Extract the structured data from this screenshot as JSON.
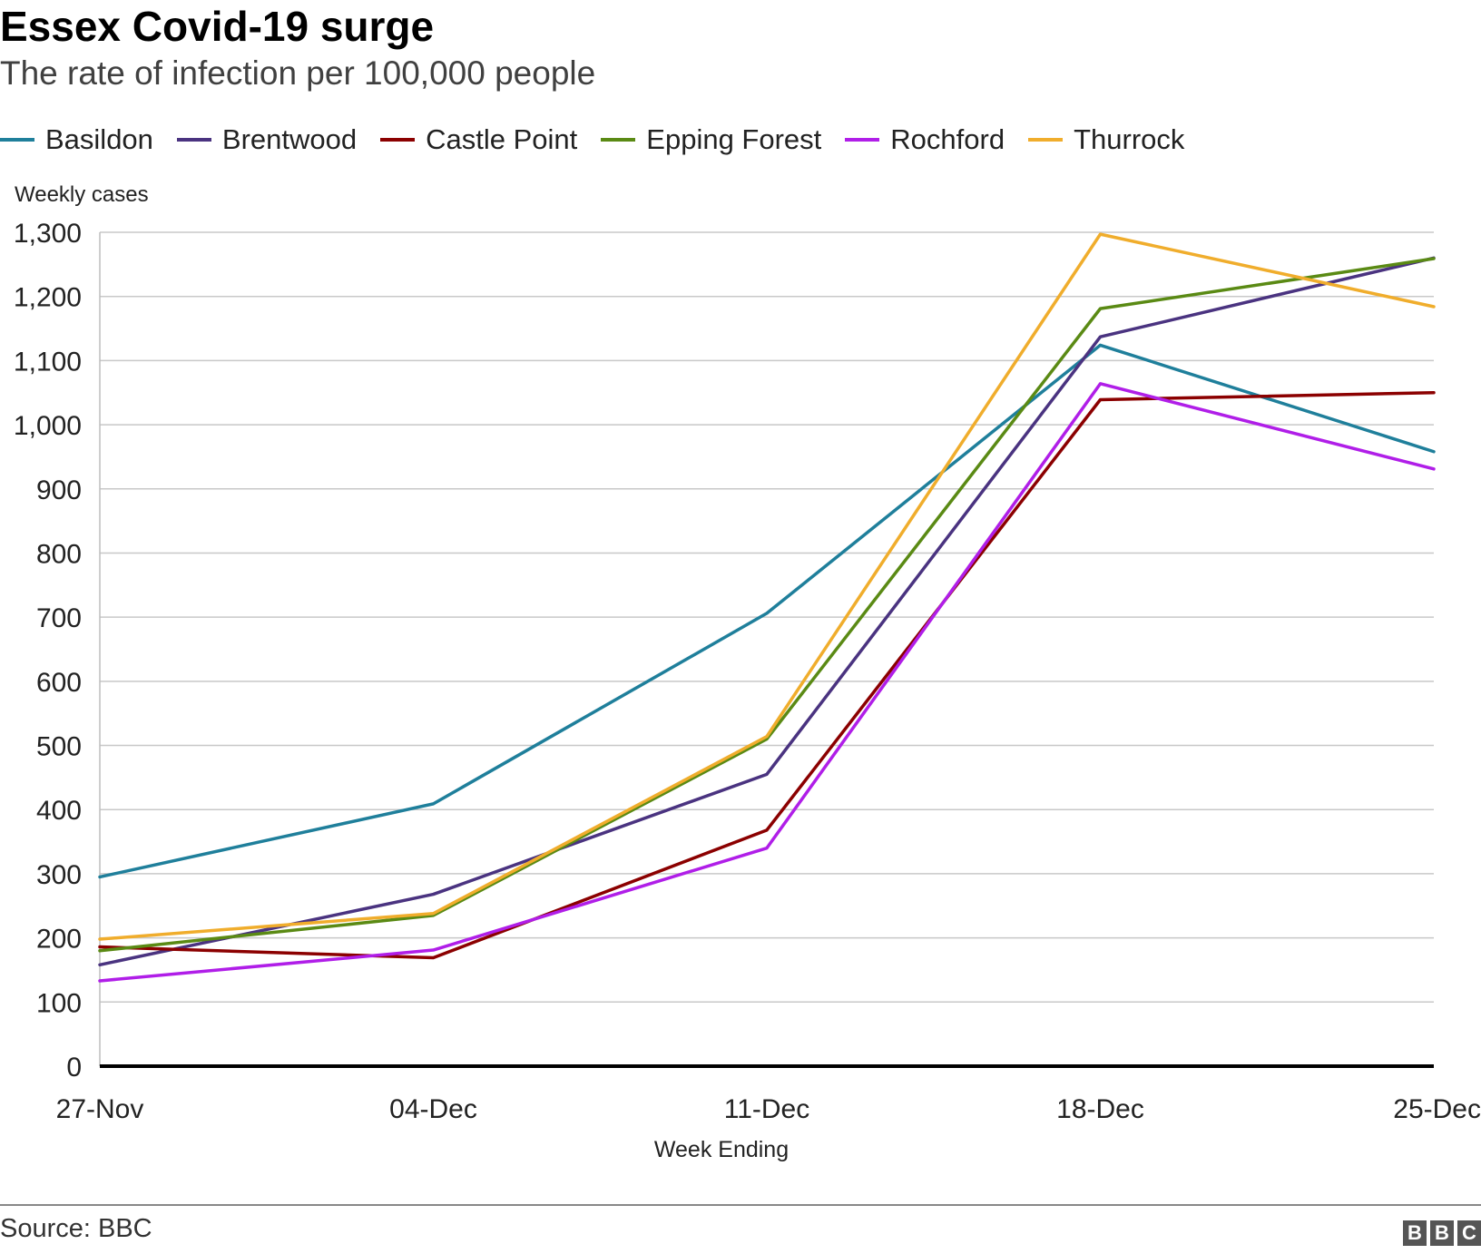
{
  "header": {
    "title": "Essex Covid-19 surge",
    "subtitle": "The rate of infection per 100,000 people"
  },
  "footer": {
    "source": "Source: BBC",
    "logo_letters": [
      "B",
      "B",
      "C"
    ]
  },
  "chart_data": {
    "type": "line",
    "title": "Essex Covid-19 surge",
    "subtitle": "The rate of infection per 100,000 people",
    "xlabel": "Week Ending",
    "ylabel": "Weekly cases",
    "categories": [
      "27-Nov",
      "04-Dec",
      "11-Dec",
      "18-Dec",
      "25-Dec"
    ],
    "ylim": [
      0,
      1300
    ],
    "yticks": [
      0,
      100,
      200,
      300,
      400,
      500,
      600,
      700,
      800,
      900,
      1000,
      1100,
      1200,
      1300
    ],
    "ytick_labels": [
      "0",
      "100",
      "200",
      "300",
      "400",
      "500",
      "600",
      "700",
      "800",
      "900",
      "1,000",
      "1,100",
      "1,200",
      "1,300"
    ],
    "grid": true,
    "legend_position": "top",
    "series": [
      {
        "name": "Basildon",
        "color": "#1f7f9b",
        "values": [
          295,
          409,
          706,
          1124,
          958
        ]
      },
      {
        "name": "Brentwood",
        "color": "#4a3380",
        "values": [
          158,
          268,
          455,
          1137,
          1260
        ]
      },
      {
        "name": "Castle Point",
        "color": "#8b0000",
        "values": [
          186,
          169,
          368,
          1039,
          1050
        ]
      },
      {
        "name": "Epping Forest",
        "color": "#5a8a14",
        "values": [
          180,
          235,
          510,
          1181,
          1259
        ]
      },
      {
        "name": "Rochford",
        "color": "#b01ee8",
        "values": [
          133,
          181,
          340,
          1064,
          931
        ]
      },
      {
        "name": "Thurrock",
        "color": "#f0ad2c",
        "values": [
          198,
          238,
          514,
          1297,
          1184
        ]
      }
    ]
  }
}
